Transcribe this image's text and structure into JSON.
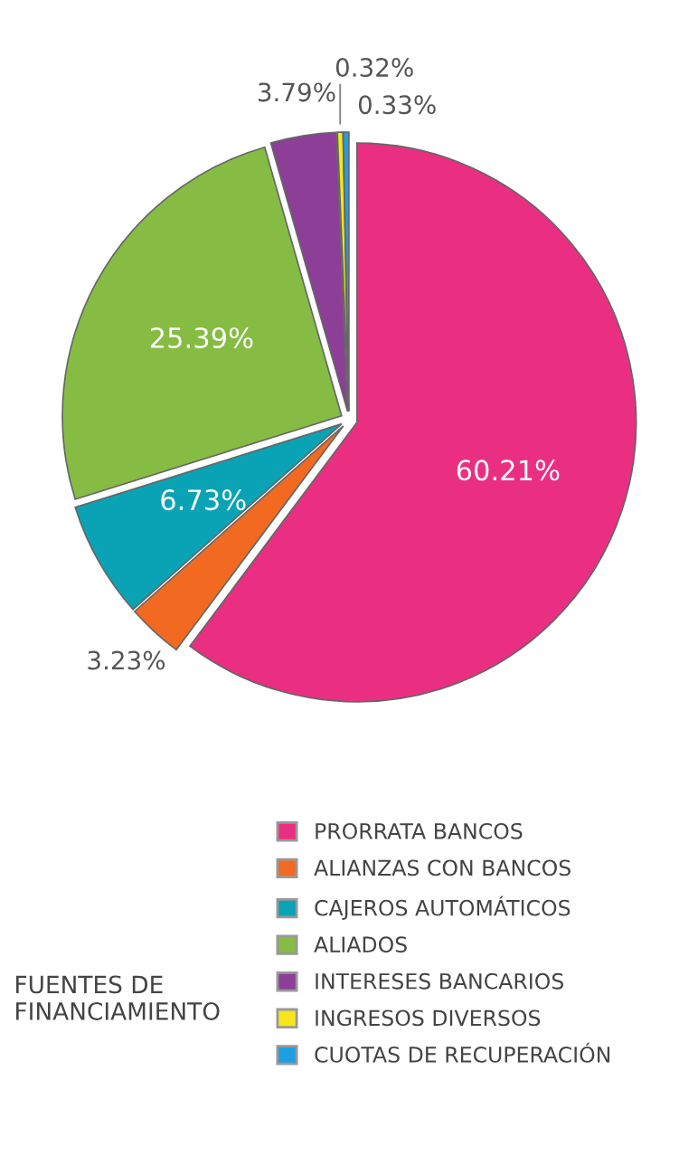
{
  "chart_data": {
    "type": "pie",
    "legend_title": "FUENTES DE\nFINANCIAMIENTO",
    "legend": "bottom",
    "data_labels": true,
    "categories": [
      "PRORRATA BANCOS",
      "ALIANZAS CON BANCOS",
      "CAJEROS AUTOMÁTICOS",
      "ALIADOS",
      "INTERESES BANCARIOS",
      "INGRESOS DIVERSOS",
      "CUOTAS DE RECUPERACIÓN"
    ],
    "values": [
      60.21,
      3.23,
      6.73,
      25.39,
      3.79,
      0.32,
      0.33
    ],
    "value_labels": [
      "60.21%",
      "3.23%",
      "6.73%",
      "25.39%",
      "3.79%",
      "0.32%",
      "0.33%"
    ],
    "colors": [
      "#ea2f82",
      "#f26a22",
      "#0aa3b5",
      "#86bc43",
      "#8d3f98",
      "#f5e61e",
      "#1e9fe0"
    ]
  }
}
